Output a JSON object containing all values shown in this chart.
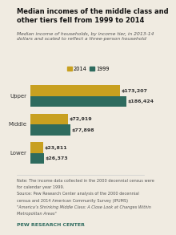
{
  "title": "Median incomes of the middle class and\nother tiers fell from 1999 to 2014",
  "subtitle": "Median income of households, by income tier, in 2013-14\ndollars and scaled to reflect a three-person household",
  "categories": [
    "Upper",
    "Middle",
    "Lower"
  ],
  "values_2014": [
    173207,
    72919,
    23811
  ],
  "values_1999": [
    186424,
    77898,
    26373
  ],
  "labels_2014": [
    "$173,207",
    "$72,919",
    "$23,811"
  ],
  "labels_1999": [
    "$186,424",
    "$77,898",
    "$26,373"
  ],
  "color_2014": "#C8A020",
  "color_1999": "#2E6B5E",
  "background_color": "#F0EBE1",
  "note1": "Note: The income data collected in the 2000 decennial census were",
  "note2": "for calendar year 1999.",
  "source1": "Source: Pew Research Center analysis of the 2000 decennial",
  "source2": "census and 2014 American Community Survey (IPUMS)",
  "citation": "\"America’s Shrinking Middle Class: A Close Look at Changes Within",
  "citation2": "Metropolitan Areas\"",
  "footer": "PEW RESEARCH CENTER",
  "xlim": [
    0,
    215000
  ],
  "bar_height": 0.38
}
